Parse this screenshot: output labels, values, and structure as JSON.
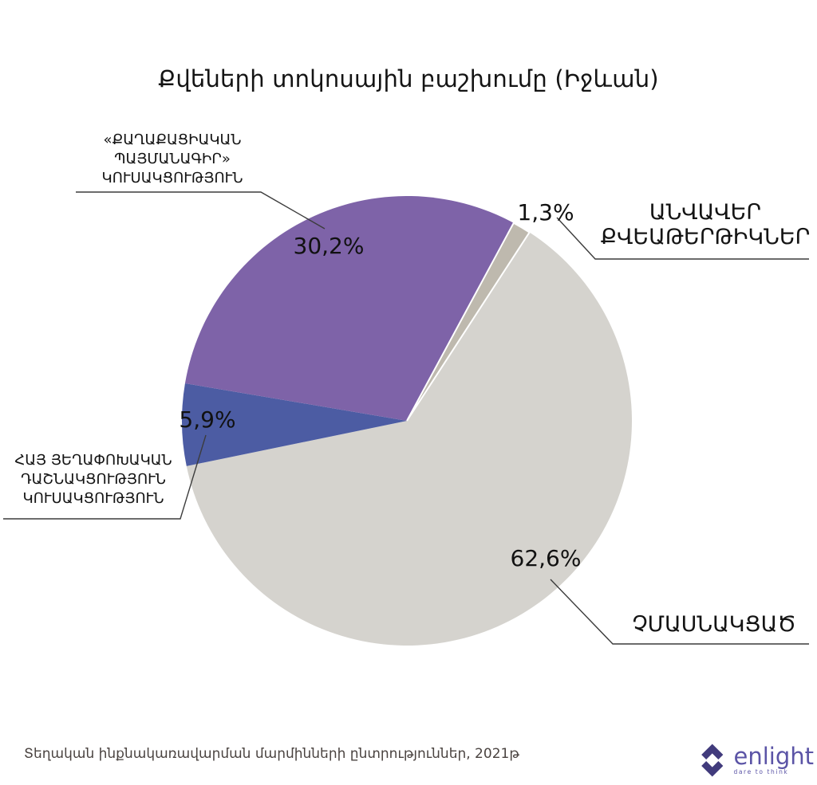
{
  "title": "Քվեների տոկոսային բաշխումը (Իջևան)",
  "chart_data": {
    "type": "pie",
    "title": "Քվեների տոկոսային բաշխումը (Իջևան)",
    "start_angle_deg": 33,
    "direction": "clockwise",
    "legend_position": "callout-labels",
    "slices": [
      {
        "id": "nonparticipating",
        "label": "ՉՄԱՍՆԱԿՑԱԾ",
        "value": 62.6,
        "value_label": "62,6%",
        "color": "#D5D3CE",
        "outlined": false
      },
      {
        "id": "arf",
        "label": "ՀԱՅ ՅԵՂԱՓՈԽԱԿԱՆ\nԴԱՇՆԱԿՑՈՒԹՅՈՒՆ\nԿՈՒՍԱԿՑՈՒԹՅՈՒՆ",
        "value": 5.9,
        "value_label": "5,9%",
        "color": "#4C5CA3",
        "outlined": false
      },
      {
        "id": "civil-contract",
        "label": "«ՔԱՂԱՔԱՑԻԱԿԱՆ\nՊԱՅՄԱՆԱԳԻՐ»\nԿՈՒՍԱԿՑՈՒԹՅՈՒՆ",
        "value": 30.2,
        "value_label": "30,2%",
        "color": "#7E63A8",
        "outlined": false
      },
      {
        "id": "invalid",
        "label": "ԱՆՎԱՎԵՐ\nՔՎԵԱԹԵՐԹԻԿՆԵՐ",
        "value": 1.3,
        "value_label": "1,3%",
        "color": "#BEB9AE",
        "outlined": true
      }
    ]
  },
  "footer": {
    "source": "Տեղական ինքնակառավարման մարմինների ընտրություններ, 2021թ"
  },
  "logo": {
    "name": "enlight",
    "tagline": "dare to think",
    "text_color": "#5B54A6",
    "icon_color": "#413B7C"
  }
}
